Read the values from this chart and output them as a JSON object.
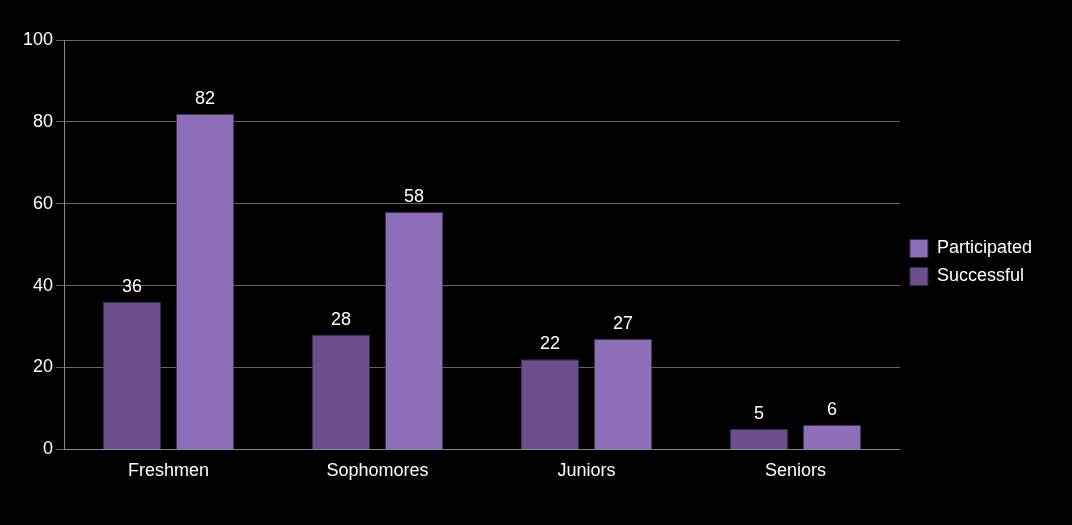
{
  "chart_data": {
    "type": "bar",
    "categories": [
      "Freshmen",
      "Sophomores",
      "Juniors",
      "Seniors"
    ],
    "series": [
      {
        "name": "Successful",
        "color": "#6a4f8c",
        "values": [
          36,
          28,
          22,
          5
        ]
      },
      {
        "name": "Participated",
        "color": "#8c6fb8",
        "values": [
          82,
          58,
          27,
          6
        ]
      }
    ],
    "ylim": [
      0,
      100
    ],
    "yticks": [
      0,
      20,
      40,
      60,
      80,
      100
    ],
    "grid": "y",
    "legend": "right",
    "data_labels": true
  }
}
